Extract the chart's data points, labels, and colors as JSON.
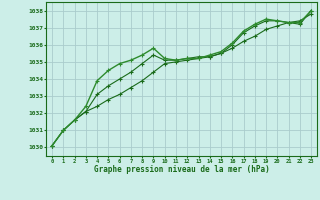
{
  "bg_color": "#cceee8",
  "grid_color": "#aacccc",
  "line_color": "#1a6b1a",
  "line_color2": "#2d8b2d",
  "xlabel": "Graphe pression niveau de la mer (hPa)",
  "xlim": [
    -0.5,
    23.5
  ],
  "ylim": [
    1029.5,
    1038.5
  ],
  "yticks": [
    1030,
    1031,
    1032,
    1033,
    1034,
    1035,
    1036,
    1037,
    1038
  ],
  "xticks": [
    0,
    1,
    2,
    3,
    4,
    5,
    6,
    7,
    8,
    9,
    10,
    11,
    12,
    13,
    14,
    15,
    16,
    17,
    18,
    19,
    20,
    21,
    22,
    23
  ],
  "series1": [
    1030.1,
    1031.0,
    1031.6,
    1032.1,
    1033.1,
    1033.6,
    1034.0,
    1034.4,
    1034.9,
    1035.4,
    1035.1,
    1035.1,
    1035.2,
    1035.3,
    1035.3,
    1035.5,
    1036.0,
    1036.7,
    1037.1,
    1037.4,
    1037.4,
    1037.3,
    1037.2,
    1038.0
  ],
  "series2": [
    1030.1,
    1031.0,
    1031.6,
    1032.4,
    1033.9,
    1034.5,
    1034.9,
    1035.1,
    1035.4,
    1035.8,
    1035.2,
    1035.1,
    1035.2,
    1035.2,
    1035.4,
    1035.6,
    1036.1,
    1036.8,
    1037.2,
    1037.5,
    1037.4,
    1037.3,
    1037.3,
    1038.0
  ],
  "series3": [
    1030.1,
    1031.0,
    1031.6,
    1032.1,
    1032.4,
    1032.8,
    1033.1,
    1033.5,
    1033.9,
    1034.4,
    1034.9,
    1035.0,
    1035.1,
    1035.2,
    1035.3,
    1035.5,
    1035.8,
    1036.2,
    1036.5,
    1036.9,
    1037.1,
    1037.3,
    1037.4,
    1037.8
  ]
}
